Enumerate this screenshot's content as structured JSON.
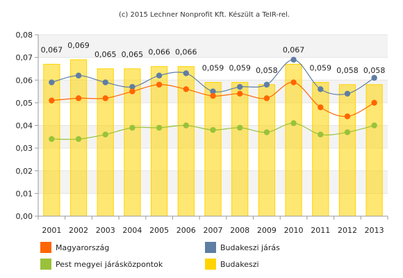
{
  "chart_data": {
    "type": "bar",
    "title": "(c) 2015 Lechner Nonprofit Kft. Készült a TeIR-rel.",
    "categories": [
      "2001",
      "2002",
      "2003",
      "2004",
      "2005",
      "2006",
      "2007",
      "2008",
      "2009",
      "2010",
      "2011",
      "2012",
      "2013"
    ],
    "ylim": [
      0,
      0.08
    ],
    "yticks": [
      "0,00",
      "0,01",
      "0,02",
      "0,03",
      "0,04",
      "0,05",
      "0,06",
      "0,07",
      "0,08"
    ],
    "grid": true,
    "legend_placement": "bottom",
    "series": [
      {
        "name": "Budakeszi",
        "kind": "bar",
        "color": "#ffd400",
        "values": [
          0.067,
          0.069,
          0.065,
          0.065,
          0.066,
          0.066,
          0.059,
          0.059,
          0.058,
          0.067,
          0.059,
          0.058,
          0.058
        ],
        "labels": [
          "0,067",
          "0,069",
          "0,065",
          "0,065",
          "0,066",
          "0,066",
          "0,059",
          "0,059",
          "0,058",
          "0,067",
          "0,059",
          "0,058",
          "0,058"
        ]
      },
      {
        "name": "Budakeszi járás",
        "kind": "line",
        "color": "#5f7ea4",
        "values": [
          0.059,
          0.062,
          0.059,
          0.057,
          0.062,
          0.063,
          0.055,
          0.057,
          0.058,
          0.069,
          0.056,
          0.054,
          0.061
        ]
      },
      {
        "name": "Magyarország",
        "kind": "line",
        "color": "#ff6600",
        "values": [
          0.051,
          0.052,
          0.052,
          0.055,
          0.058,
          0.056,
          0.053,
          0.054,
          0.052,
          0.059,
          0.048,
          0.044,
          0.05
        ]
      },
      {
        "name": "Pest megyei járásközpontok",
        "kind": "line",
        "color": "#99c23a",
        "values": [
          0.034,
          0.034,
          0.036,
          0.039,
          0.039,
          0.04,
          0.038,
          0.039,
          0.037,
          0.041,
          0.036,
          0.037,
          0.04
        ]
      }
    ]
  }
}
